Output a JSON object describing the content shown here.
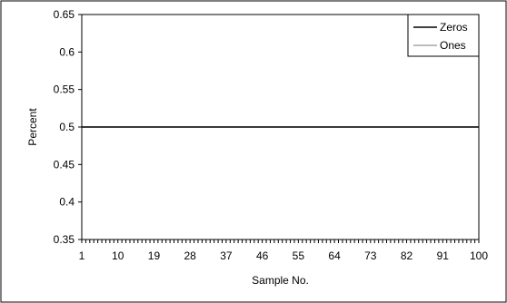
{
  "chart_data": {
    "type": "line",
    "title": "",
    "xlabel": "Sample No.",
    "ylabel": "Percent",
    "x_range": [
      1,
      100
    ],
    "x_tick_labels": [
      "1",
      "10",
      "19",
      "28",
      "37",
      "46",
      "55",
      "64",
      "73",
      "82",
      "91",
      "100"
    ],
    "ylim": [
      0.35,
      0.65
    ],
    "y_tick_labels": [
      "0.35",
      "0.4",
      "0.45",
      "0.5",
      "0.55",
      "0.6",
      "0.65"
    ],
    "grid": false,
    "legend_position": "top-right",
    "series": [
      {
        "name": "Zeros",
        "color": "#000000",
        "values": [
          0.5,
          0.5,
          0.5,
          0.5,
          0.5,
          0.5,
          0.5,
          0.5,
          0.5,
          0.5,
          0.5,
          0.5,
          0.5,
          0.5,
          0.5,
          0.5,
          0.5,
          0.5,
          0.5,
          0.5,
          0.5,
          0.5,
          0.5,
          0.5,
          0.5,
          0.5,
          0.5,
          0.5,
          0.5,
          0.5,
          0.5,
          0.5,
          0.5,
          0.5,
          0.5,
          0.5,
          0.5,
          0.5,
          0.5,
          0.5,
          0.5,
          0.5,
          0.5,
          0.5,
          0.5,
          0.5,
          0.5,
          0.5,
          0.5,
          0.5,
          0.5,
          0.5,
          0.5,
          0.5,
          0.5,
          0.5,
          0.5,
          0.5,
          0.5,
          0.5,
          0.5,
          0.5,
          0.5,
          0.5,
          0.5,
          0.5,
          0.5,
          0.5,
          0.5,
          0.5,
          0.5,
          0.5,
          0.5,
          0.5,
          0.5,
          0.5,
          0.5,
          0.5,
          0.5,
          0.5,
          0.5,
          0.5,
          0.5,
          0.5,
          0.5,
          0.5,
          0.5,
          0.5,
          0.5,
          0.5,
          0.5,
          0.5,
          0.5,
          0.5,
          0.5,
          0.5,
          0.5,
          0.5,
          0.5,
          0.5
        ]
      },
      {
        "name": "Ones",
        "color": "#a6a6a6",
        "values": [
          0.5,
          0.5,
          0.5,
          0.5,
          0.5,
          0.5,
          0.5,
          0.5,
          0.5,
          0.5,
          0.5,
          0.5,
          0.5,
          0.5,
          0.5,
          0.5,
          0.5,
          0.5,
          0.5,
          0.5,
          0.5,
          0.5,
          0.5,
          0.5,
          0.5,
          0.5,
          0.5,
          0.5,
          0.5,
          0.5,
          0.5,
          0.5,
          0.5,
          0.5,
          0.5,
          0.5,
          0.5,
          0.5,
          0.5,
          0.5,
          0.5,
          0.5,
          0.5,
          0.5,
          0.5,
          0.5,
          0.5,
          0.5,
          0.5,
          0.5,
          0.5,
          0.5,
          0.5,
          0.5,
          0.5,
          0.5,
          0.5,
          0.5,
          0.5,
          0.5,
          0.5,
          0.5,
          0.5,
          0.5,
          0.5,
          0.5,
          0.5,
          0.5,
          0.5,
          0.5,
          0.5,
          0.5,
          0.5,
          0.5,
          0.5,
          0.5,
          0.5,
          0.5,
          0.5,
          0.5,
          0.5,
          0.5,
          0.5,
          0.5,
          0.5,
          0.5,
          0.5,
          0.5,
          0.5,
          0.5,
          0.5,
          0.5,
          0.5,
          0.5,
          0.5,
          0.5,
          0.5,
          0.5,
          0.5,
          0.5
        ]
      }
    ]
  }
}
